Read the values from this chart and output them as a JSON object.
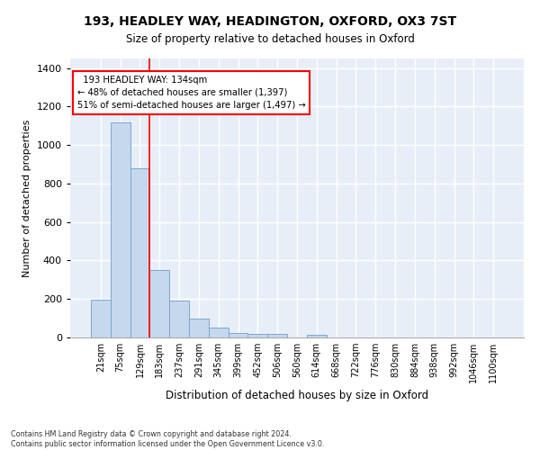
{
  "title_line1": "193, HEADLEY WAY, HEADINGTON, OXFORD, OX3 7ST",
  "title_line2": "Size of property relative to detached houses in Oxford",
  "xlabel": "Distribution of detached houses by size in Oxford",
  "ylabel": "Number of detached properties",
  "bar_color": "#c5d8ed",
  "bar_edge_color": "#7aa8d2",
  "background_color": "#e8eef8",
  "grid_color": "#ffffff",
  "categories": [
    "21sqm",
    "75sqm",
    "129sqm",
    "183sqm",
    "237sqm",
    "291sqm",
    "345sqm",
    "399sqm",
    "452sqm",
    "506sqm",
    "560sqm",
    "614sqm",
    "668sqm",
    "722sqm",
    "776sqm",
    "830sqm",
    "884sqm",
    "938sqm",
    "992sqm",
    "1046sqm",
    "1100sqm"
  ],
  "values": [
    195,
    1120,
    880,
    350,
    192,
    100,
    52,
    22,
    20,
    17,
    0,
    14,
    0,
    0,
    0,
    0,
    0,
    0,
    0,
    0,
    0
  ],
  "ylim": [
    0,
    1450
  ],
  "yticks": [
    0,
    200,
    400,
    600,
    800,
    1000,
    1200,
    1400
  ],
  "property_label": "193 HEADLEY WAY: 134sqm",
  "pct_smaller": 48,
  "n_smaller": 1397,
  "pct_larger_semi": 51,
  "n_larger_semi": 1497,
  "vline_x_index": 2.5,
  "footnote": "Contains HM Land Registry data © Crown copyright and database right 2024.\nContains public sector information licensed under the Open Government Licence v3.0."
}
